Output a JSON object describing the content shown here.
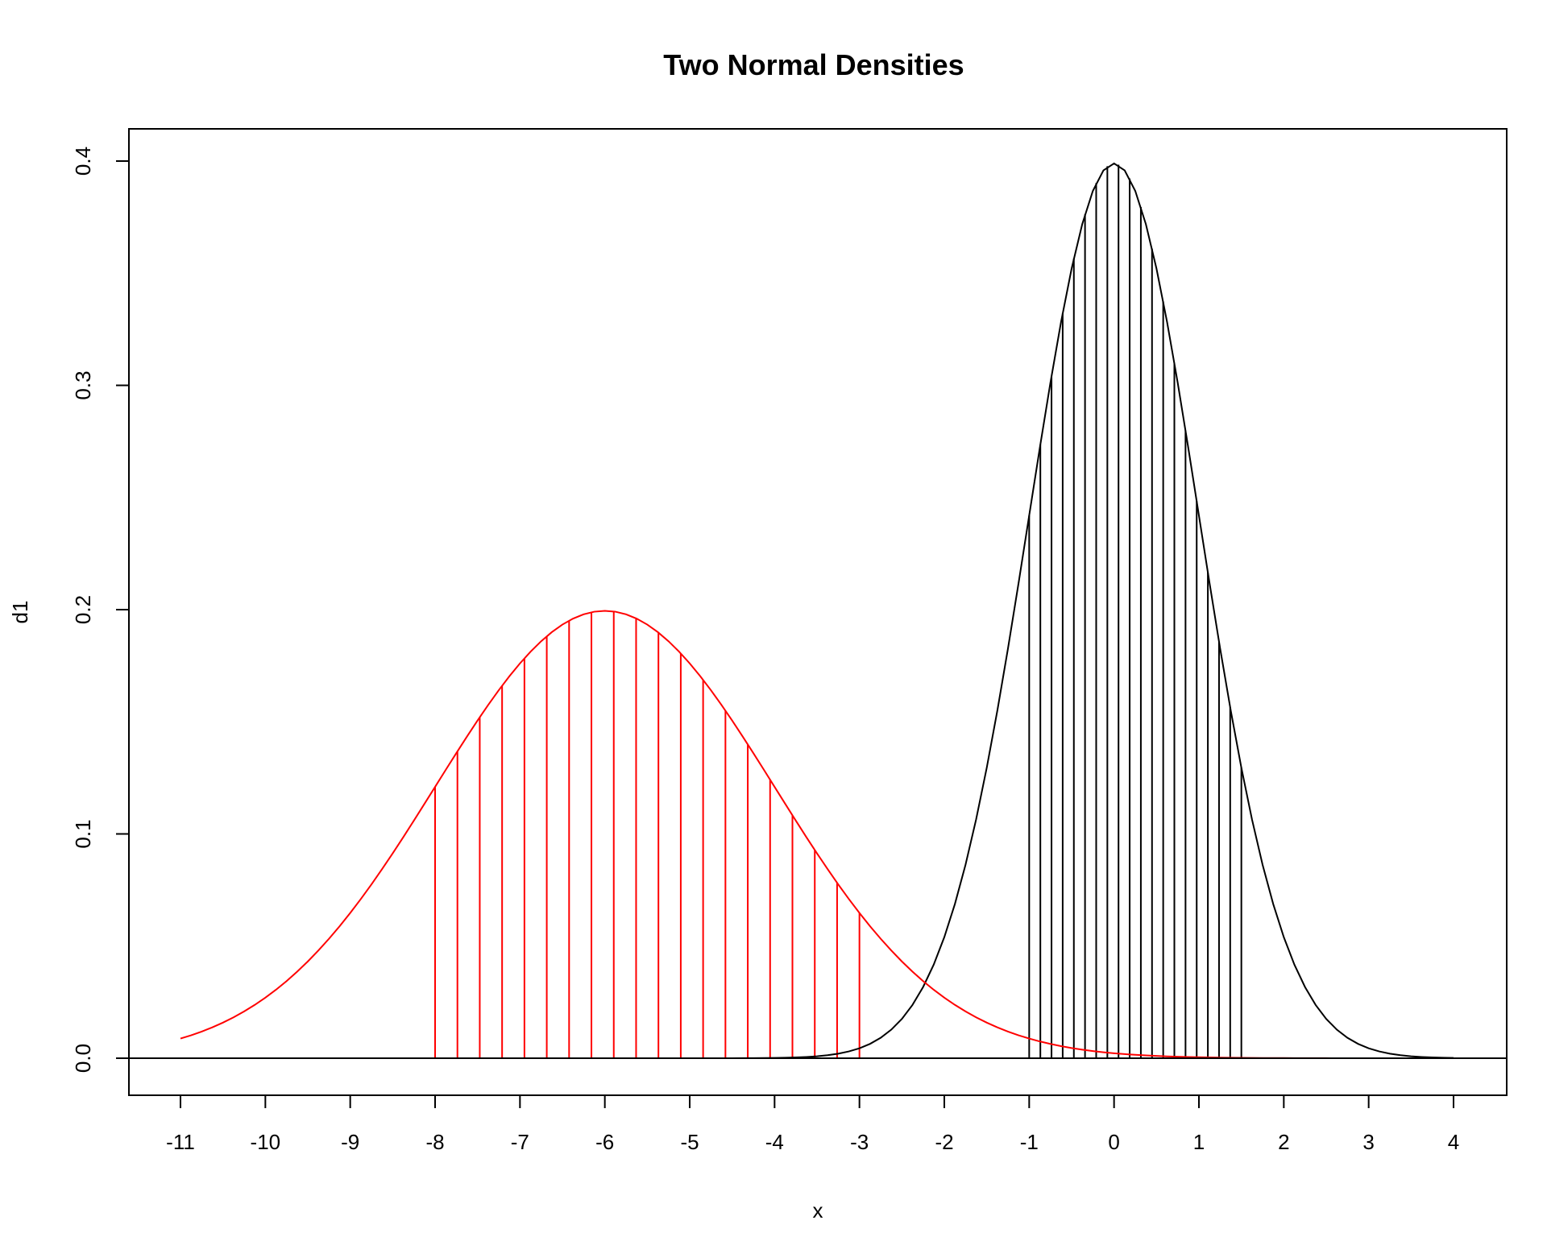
{
  "chart_data": {
    "type": "line",
    "title": "Two Normal Densities",
    "xlabel": "x",
    "ylabel": "d1",
    "xlim": [
      -11,
      4
    ],
    "ylim": [
      0,
      0.4
    ],
    "grid": false,
    "x_ticks": [
      "-11",
      "-10",
      "-9",
      "-8",
      "-7",
      "-6",
      "-5",
      "-4",
      "-3",
      "-2",
      "-1",
      "0",
      "1",
      "2",
      "3",
      "4"
    ],
    "y_ticks": [
      "0.0",
      "0.1",
      "0.2",
      "0.3",
      "0.4"
    ],
    "series": [
      {
        "color": "#000000",
        "distribution": {
          "mean": 0,
          "sd": 1
        },
        "x_range": [
          -11,
          4
        ],
        "shaded_range": [
          -1,
          1.5
        ]
      },
      {
        "color": "#ff0000",
        "distribution": {
          "mean": -6,
          "sd": 2
        },
        "x_range": [
          -11,
          4
        ],
        "shaded_range": [
          -8,
          -3
        ]
      }
    ],
    "reference_lines": [
      {
        "orientation": "horizontal",
        "y": 0,
        "color": "#000000"
      }
    ]
  }
}
